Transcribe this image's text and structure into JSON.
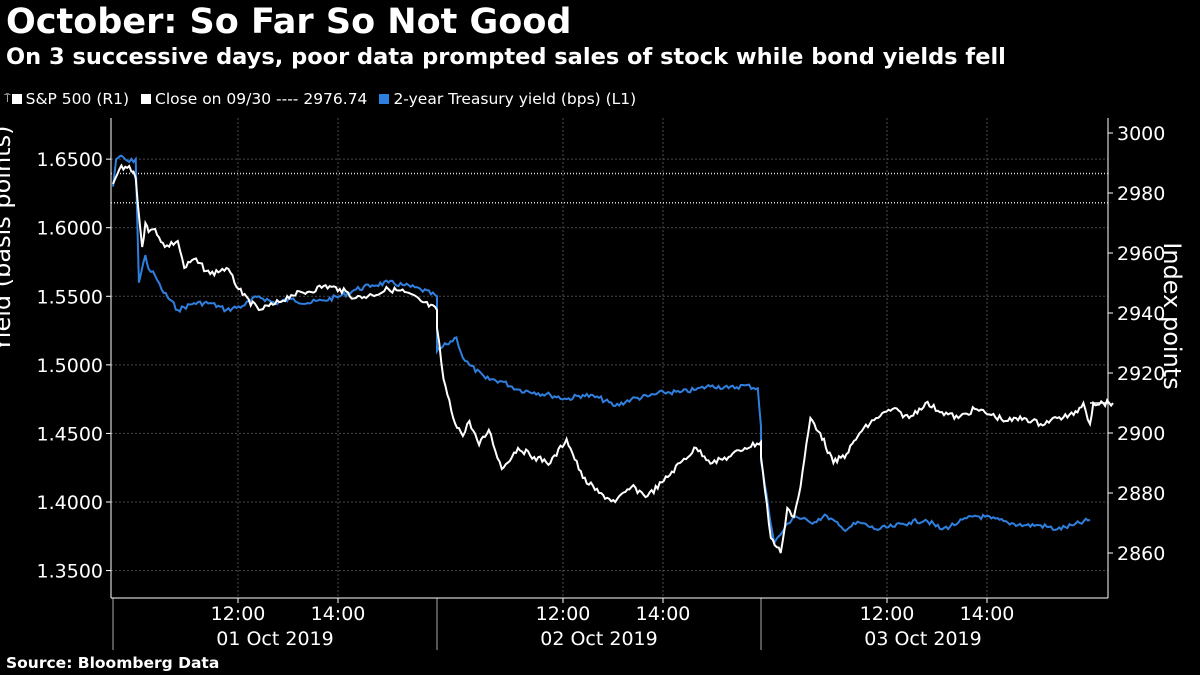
{
  "title": "October: So Far So Not Good",
  "subtitle": "On 3 successive days, poor data prompted sales of stock while bond yields fell",
  "source": "Source: Bloomberg Data",
  "legend": {
    "sp500": "S&P 500 (R1)",
    "close": "Close on 09/30 ---- 2976.74",
    "treasury": "2-year Treasury yield (bps) (L1)"
  },
  "colors": {
    "background": "#000000",
    "sp500": "#ffffff",
    "treasury": "#2f7fdf",
    "grid": "#555555"
  },
  "chart_data": {
    "type": "line",
    "title": "October: So Far So Not Good",
    "ylabel_left": "Yield (basis points)",
    "ylabel_right": "Index points",
    "ylim_left": [
      1.33,
      1.68
    ],
    "ylim_right": [
      2845,
      3005
    ],
    "left_ticks": [
      "1.3500",
      "1.4000",
      "1.4500",
      "1.5000",
      "1.5500",
      "1.6000",
      "1.6500"
    ],
    "right_ticks": [
      "2860",
      "2880",
      "2900",
      "2920",
      "2940",
      "2960",
      "2980",
      "3000"
    ],
    "x_time_ticks": [
      "12:00",
      "14:00",
      "12:00",
      "14:00",
      "12:00",
      "14:00"
    ],
    "x_day_labels": [
      "01 Oct 2019",
      "02 Oct 2019",
      "03 Oct 2019"
    ],
    "reference_line": {
      "name": "Close on 09/30",
      "value": 2976.74,
      "axis": "right"
    },
    "series": [
      {
        "name": "S&P 500 (R1)",
        "axis": "right",
        "x": [
          0,
          0.02,
          0.05,
          0.07,
          0.09,
          0.1,
          0.11,
          0.13,
          0.16,
          0.2,
          0.22,
          0.25,
          0.3,
          0.35,
          0.4,
          0.45,
          0.5,
          0.55,
          0.6,
          0.65,
          0.7,
          0.75,
          0.8,
          0.85,
          0.9,
          0.95,
          1.0,
          1.0,
          1.02,
          1.05,
          1.08,
          1.1,
          1.13,
          1.16,
          1.2,
          1.25,
          1.3,
          1.35,
          1.4,
          1.45,
          1.5,
          1.55,
          1.6,
          1.65,
          1.7,
          1.75,
          1.8,
          1.85,
          1.9,
          1.95,
          2.0,
          2.0,
          2.03,
          2.06,
          2.08,
          2.1,
          2.12,
          2.15,
          2.18,
          2.22,
          2.26,
          2.3,
          2.35,
          2.4,
          2.45,
          2.5,
          2.55,
          2.6,
          2.65,
          2.7,
          2.75,
          2.8,
          2.85,
          2.9,
          2.95,
          2.98,
          3.0,
          3.01,
          3.07
        ],
        "values": [
          2983,
          2988,
          2989,
          2985,
          2962,
          2970,
          2967,
          2968,
          2962,
          2964,
          2955,
          2958,
          2953,
          2955,
          2946,
          2941,
          2943,
          2946,
          2947,
          2949,
          2948,
          2945,
          2946,
          2948,
          2947,
          2944,
          2941,
          2935,
          2918,
          2905,
          2899,
          2904,
          2896,
          2901,
          2888,
          2895,
          2892,
          2890,
          2898,
          2885,
          2880,
          2877,
          2882,
          2879,
          2884,
          2890,
          2895,
          2890,
          2892,
          2895,
          2897,
          2892,
          2865,
          2860,
          2875,
          2872,
          2882,
          2905,
          2900,
          2890,
          2893,
          2900,
          2905,
          2908,
          2905,
          2910,
          2907,
          2905,
          2908,
          2906,
          2904,
          2905,
          2903,
          2905,
          2906,
          2910,
          2903,
          2910,
          2910
        ]
      },
      {
        "name": "2-year Treasury yield (bps) (L1)",
        "axis": "left",
        "x": [
          0,
          0.01,
          0.02,
          0.05,
          0.07,
          0.08,
          0.1,
          0.11,
          0.13,
          0.15,
          0.2,
          0.25,
          0.3,
          0.35,
          0.4,
          0.45,
          0.5,
          0.55,
          0.6,
          0.65,
          0.7,
          0.75,
          0.8,
          0.85,
          0.9,
          0.95,
          1.0,
          1.0,
          1.03,
          1.06,
          1.08,
          1.1,
          1.15,
          1.2,
          1.25,
          1.3,
          1.35,
          1.4,
          1.45,
          1.5,
          1.55,
          1.6,
          1.65,
          1.7,
          1.75,
          1.8,
          1.85,
          1.9,
          1.95,
          1.99,
          2.0,
          2.0,
          2.04,
          2.07,
          2.1,
          2.15,
          2.2,
          2.25,
          2.3,
          2.35,
          2.4,
          2.45,
          2.5,
          2.55,
          2.6,
          2.65,
          2.7,
          2.75,
          2.8,
          2.85,
          2.9,
          2.95,
          3.0
        ],
        "values": [
          1.63,
          1.65,
          1.652,
          1.648,
          1.65,
          1.56,
          1.58,
          1.57,
          1.565,
          1.555,
          1.54,
          1.545,
          1.545,
          1.54,
          1.543,
          1.55,
          1.545,
          1.548,
          1.545,
          1.547,
          1.55,
          1.555,
          1.558,
          1.56,
          1.558,
          1.555,
          1.55,
          1.51,
          1.515,
          1.52,
          1.505,
          1.5,
          1.49,
          1.488,
          1.482,
          1.48,
          1.478,
          1.475,
          1.478,
          1.476,
          1.47,
          1.475,
          1.477,
          1.48,
          1.48,
          1.482,
          1.485,
          1.483,
          1.485,
          1.483,
          1.455,
          1.43,
          1.37,
          1.38,
          1.39,
          1.385,
          1.39,
          1.38,
          1.385,
          1.38,
          1.382,
          1.385,
          1.387,
          1.38,
          1.385,
          1.39,
          1.388,
          1.385,
          1.383,
          1.383,
          1.38,
          1.383,
          1.387
        ]
      }
    ]
  }
}
